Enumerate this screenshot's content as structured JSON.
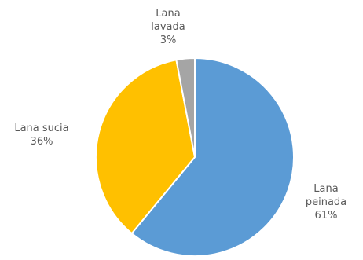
{
  "chart_data": {
    "type": "pie",
    "start_angle_deg": 0,
    "direction": "clockwise",
    "slices": [
      {
        "label_lines": [
          "Lana",
          "peinada"
        ],
        "value": 61,
        "value_label": "61%",
        "color": "#5B9BD5"
      },
      {
        "label_lines": [
          "Lana sucia"
        ],
        "value": 36,
        "value_label": "36%",
        "color": "#FFC000"
      },
      {
        "label_lines": [
          "Lana",
          "lavada"
        ],
        "value": 3,
        "value_label": "3%",
        "color": "#A5A5A5"
      }
    ],
    "slice_border_color": "#FFFFFF",
    "label_color": "#595959"
  }
}
